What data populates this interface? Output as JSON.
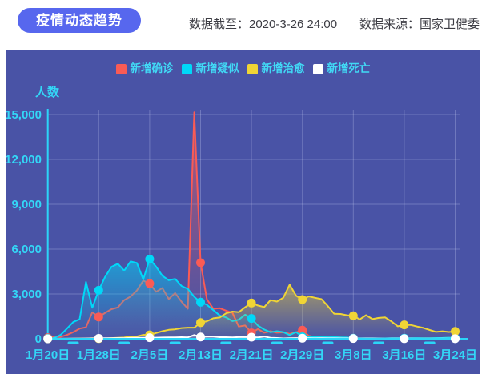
{
  "header": {
    "title": "疫情动态趋势",
    "data_cutoff": "数据截至：2020-3-26 24:00",
    "data_source": "数据来源：国家卫健委"
  },
  "panel": {
    "background": "#4953a6"
  },
  "chart_data": {
    "type": "line",
    "title": "",
    "xlabel": "",
    "ylabel": "人数",
    "ylim": [
      0,
      15000
    ],
    "y_ticks": [
      0,
      3000,
      6000,
      9000,
      12000,
      15000
    ],
    "y_tick_labels": [
      "0",
      "3,000",
      "6,000",
      "9,000",
      "12,000",
      "15,000"
    ],
    "x_tick_labels": [
      "1月20日",
      "1月28日",
      "2月5日",
      "2月13日",
      "2月21日",
      "2月29日",
      "3月8日",
      "3月16日",
      "3月24日"
    ],
    "points_per_series": 65,
    "marker_every_n_points": 8,
    "grid": true,
    "legend_position": "top",
    "axis_color": "#2bd5f8",
    "tick_label_color": "#33d7f7",
    "gridline_color": "rgba(220,228,255,0.26)",
    "series": [
      {
        "key": "new-confirmed",
        "name": "新增确诊",
        "color": "#fa5b55",
        "values": [
          77,
          149,
          131,
          259,
          444,
          688,
          769,
          1771,
          1459,
          1737,
          1982,
          2102,
          2590,
          2829,
          3235,
          3887,
          3694,
          3143,
          3399,
          2656,
          3062,
          2478,
          2015,
          15152,
          5090,
          2641,
          2009,
          2048,
          1886,
          1749,
          820,
          889,
          397,
          648,
          409,
          508,
          406,
          433,
          327,
          427,
          573,
          202,
          125,
          119,
          139,
          143,
          99,
          44,
          40,
          19,
          24,
          15,
          8,
          11,
          20,
          16,
          21,
          13,
          34,
          39,
          41,
          46,
          39,
          78,
          47
        ]
      },
      {
        "key": "new-suspected",
        "name": "新增疑似",
        "color": "#00d8f8",
        "values": [
          27,
          53,
          257,
          680,
          1118,
          1309,
          3806,
          2077,
          3248,
          4148,
          4812,
          5019,
          4562,
          5173,
          5072,
          3971,
          5328,
          4833,
          4214,
          3916,
          4008,
          3536,
          3342,
          2807,
          2450,
          2277,
          1918,
          1563,
          1432,
          1185,
          1277,
          1614,
          1361,
          882,
          620,
          439,
          508,
          452,
          248,
          452,
          132,
          141,
          129,
          143,
          102,
          110,
          99,
          84,
          36,
          31,
          31,
          33,
          28,
          27,
          36,
          41,
          45,
          37,
          46,
          41,
          43,
          54,
          58,
          74,
          56
        ]
      },
      {
        "key": "new-cured",
        "name": "新增治愈",
        "color": "#f0d535",
        "values": [
          0,
          0,
          0,
          6,
          3,
          11,
          9,
          43,
          9,
          21,
          47,
          72,
          85,
          147,
          157,
          262,
          261,
          387,
          510,
          600,
          632,
          716,
          742,
          744,
          1081,
          1171,
          1373,
          1425,
          1701,
          1824,
          1779,
          2109,
          2393,
          2230,
          2120,
          2589,
          2491,
          2750,
          3622,
          2885,
          2623,
          2837,
          2742,
          2652,
          2189,
          1678,
          1661,
          1574,
          1535,
          1297,
          1578,
          1318,
          1399,
          1430,
          1159,
          838,
          930,
          927,
          819,
          730,
          590,
          459,
          504,
          456,
          491
        ]
      },
      {
        "key": "new-deaths",
        "name": "新增死亡",
        "color": "#ffffff",
        "values": [
          2,
          3,
          8,
          8,
          16,
          15,
          24,
          26,
          26,
          38,
          43,
          46,
          45,
          57,
          64,
          65,
          73,
          73,
          86,
          89,
          97,
          108,
          97,
          254,
          121,
          143,
          142,
          105,
          106,
          98,
          114,
          118,
          109,
          97,
          150,
          71,
          52,
          29,
          44,
          47,
          35,
          42,
          31,
          38,
          31,
          30,
          28,
          27,
          22,
          17,
          22,
          22,
          11,
          7,
          10,
          14,
          13,
          11,
          8,
          3,
          7,
          6,
          9,
          7,
          4
        ]
      }
    ]
  }
}
